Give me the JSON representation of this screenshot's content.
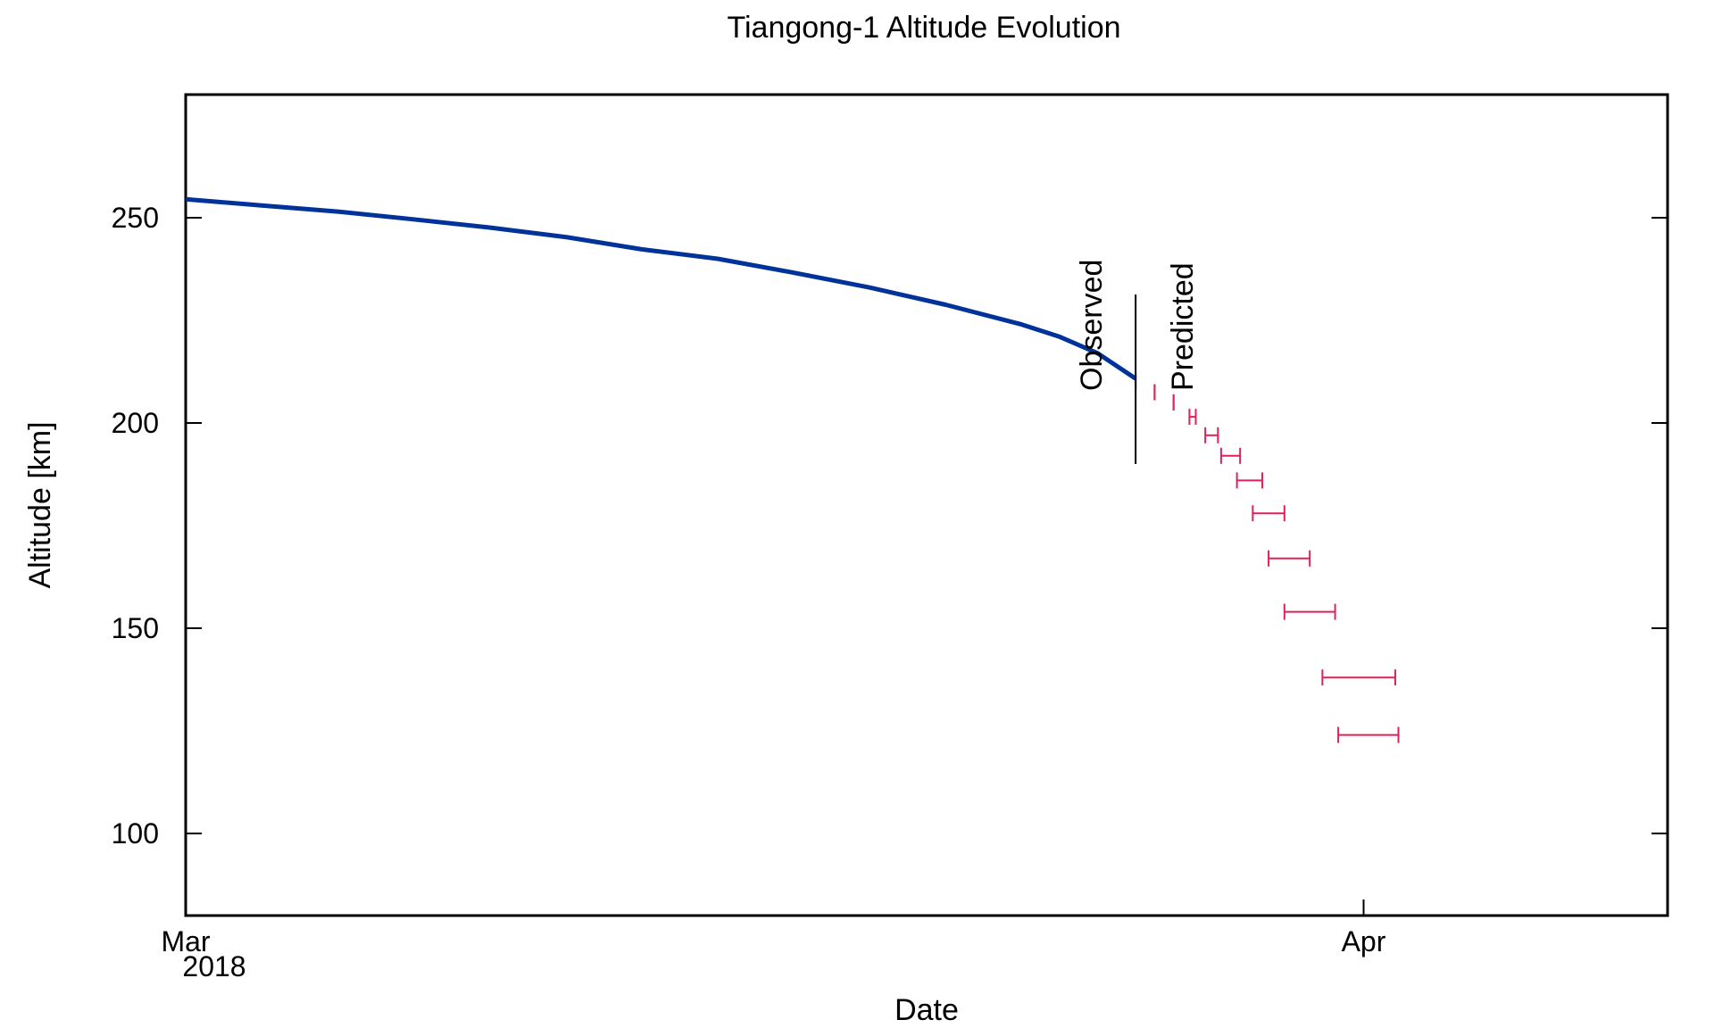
{
  "chart_data": {
    "type": "line",
    "title": "Tiangong-1 Altitude Evolution",
    "xlabel": "Date",
    "ylabel": "Altitude [km]",
    "x_unit": "date",
    "xlim": [
      "2018-03-01",
      "2018-04-09"
    ],
    "ylim": [
      80,
      280
    ],
    "yticks": [
      100,
      150,
      200,
      250
    ],
    "xticks": [
      {
        "date": "2018-03-01",
        "label": "Mar",
        "sublabel": "2018"
      },
      {
        "date": "2018-04-01",
        "label": "Apr",
        "sublabel": ""
      }
    ],
    "grid": false,
    "legend": "none",
    "colors": {
      "observed": "#003399",
      "predicted": "#e0205a",
      "divider": "#000000"
    },
    "annotations": {
      "observed_label": "Observed",
      "predicted_label": "Predicted",
      "divider_date": "2018-03-26"
    },
    "series": [
      {
        "style": "line",
        "x": [
          "2018-03-01",
          "2018-03-03",
          "2018-03-05",
          "2018-03-07",
          "2018-03-09",
          "2018-03-11",
          "2018-03-13",
          "2018-03-15",
          "2018-03-17",
          "2018-03-19",
          "2018-03-21",
          "2018-03-23",
          "2018-03-24",
          "2018-03-25",
          "2018-03-26"
        ],
        "values": [
          254.5,
          253,
          251.5,
          249.6,
          247.6,
          245.3,
          242.3,
          240,
          236.6,
          233,
          228.8,
          224,
          221,
          217,
          210.8
        ]
      },
      {
        "style": "errorbar",
        "x": [
          "2018-03-26",
          "2018-03-26 12:00",
          "2018-03-27",
          "2018-03-27 12:00",
          "2018-03-28",
          "2018-03-28 12:00",
          "2018-03-29",
          "2018-03-29 12:00",
          "2018-03-30",
          "2018-03-30 12:00",
          "2018-03-31",
          "2018-03-31 12:00"
        ],
        "values": [
          210,
          207.5,
          205,
          201.5,
          197,
          192,
          186,
          178,
          167,
          154,
          138,
          124
        ],
        "x_low": [
          "2018-03-26",
          "2018-03-26 12:00",
          "2018-03-27",
          "2018-03-27 10:00",
          "2018-03-27 20:00",
          "2018-03-28 06:00",
          "2018-03-28 16:00",
          "2018-03-29 02:00",
          "2018-03-29 12:00",
          "2018-03-29 22:00",
          "2018-03-30 22:00",
          "2018-03-31 08:00"
        ],
        "x_high": [
          "2018-03-26",
          "2018-03-26 12:00",
          "2018-03-27",
          "2018-03-27 14:00",
          "2018-03-28 04:00",
          "2018-03-28 18:00",
          "2018-03-29 08:00",
          "2018-03-29 22:00",
          "2018-03-30 14:00",
          "2018-03-31 06:00",
          "2018-04-01 20:00",
          "2018-04-01 22:00"
        ]
      }
    ]
  }
}
